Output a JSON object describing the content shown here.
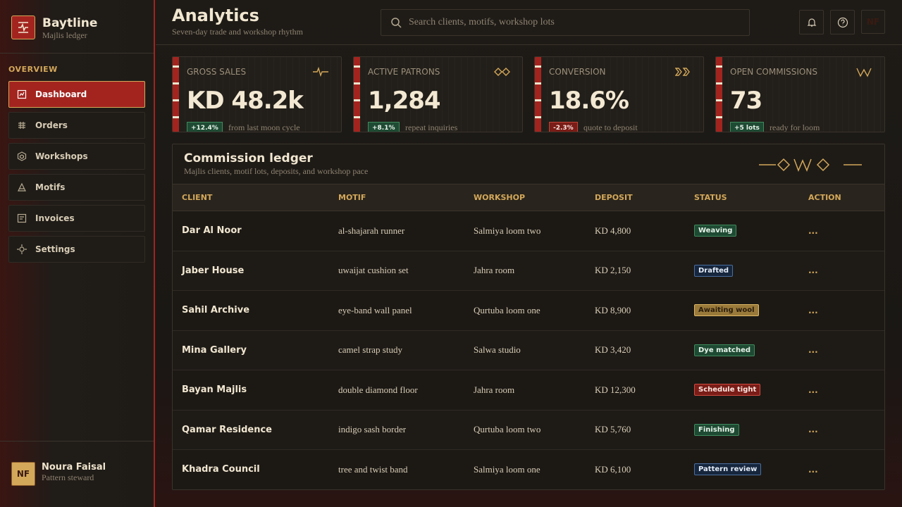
{
  "brand": {
    "initials_icon": "Baytline",
    "name": "Baytline",
    "subtitle": "Majlis ledger"
  },
  "nav": {
    "section": "OVERVIEW",
    "active": 0,
    "items": [
      "Dashboard",
      "Orders",
      "Workshops",
      "Motifs",
      "Invoices",
      "Settings"
    ]
  },
  "user": {
    "initials": "NF",
    "name": "Noura Faisal",
    "role": "Pattern steward"
  },
  "header": {
    "title": "Analytics",
    "subtitle": "Seven-day trade and workshop rhythm",
    "search_placeholder": "Search clients, motifs, workshop lots",
    "avatar": "NF"
  },
  "kpis": [
    {
      "label": "GROSS SALES",
      "value": "KD 48.2k",
      "delta": "+12.4%",
      "trend": "up",
      "note": "from last moon cycle"
    },
    {
      "label": "ACTIVE PATRONS",
      "value": "1,284",
      "delta": "+8.1%",
      "trend": "up",
      "note": "repeat inquiries"
    },
    {
      "label": "CONVERSION",
      "value": "18.6%",
      "delta": "-2.3%",
      "trend": "down",
      "note": "quote to deposit"
    },
    {
      "label": "OPEN COMMISSIONS",
      "value": "73",
      "delta": "+5 lots",
      "trend": "up",
      "note": "ready for loom"
    }
  ],
  "table": {
    "title": "Commission ledger",
    "subtitle": "Majlis clients, motif lots, deposits, and workshop pace",
    "columns": [
      "CLIENT",
      "MOTIF",
      "WORKSHOP",
      "DEPOSIT",
      "STATUS",
      "ACTION"
    ],
    "status_tones": [
      "green",
      "blue",
      "amber",
      "green",
      "red",
      "green",
      "blue"
    ],
    "rows": [
      [
        "Dar Al Noor",
        "al-shajarah runner",
        "Salmiya loom two",
        "KD 4,800",
        "Weaving",
        "..."
      ],
      [
        "Jaber House",
        "uwaijat cushion set",
        "Jahra room",
        "KD 2,150",
        "Drafted",
        "..."
      ],
      [
        "Sahil Archive",
        "eye-band wall panel",
        "Qurtuba loom one",
        "KD 8,900",
        "Awaiting wool",
        "..."
      ],
      [
        "Mina Gallery",
        "camel strap study",
        "Salwa studio",
        "KD 3,420",
        "Dye matched",
        "..."
      ],
      [
        "Bayan Majlis",
        "double diamond floor",
        "Jahra room",
        "KD 12,300",
        "Schedule tight",
        "..."
      ],
      [
        "Qamar Residence",
        "indigo sash border",
        "Qurtuba loom two",
        "KD 5,760",
        "Finishing",
        "..."
      ],
      [
        "Khadra Council",
        "tree and twist band",
        "Salmiya loom one",
        "KD 6,100",
        "Pattern review",
        "..."
      ]
    ]
  }
}
